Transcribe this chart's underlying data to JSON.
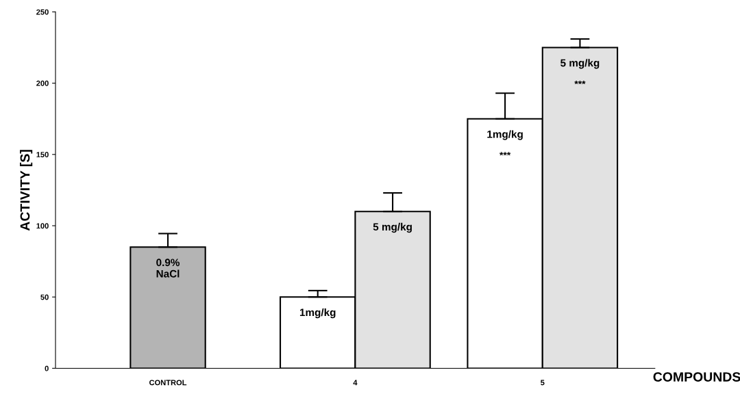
{
  "chart_data": {
    "type": "bar",
    "xlabel": "COMPOUNDS",
    "ylabel": "ACTIVITY [S]",
    "categories": [
      "CONTROL",
      "4",
      "5"
    ],
    "series": [
      {
        "name": "0.9%\nNaCl",
        "color": "#b4b4b4",
        "values": [
          85,
          null,
          null
        ],
        "errors": [
          [
            85,
            94.5
          ],
          null,
          null
        ],
        "value_labels": [
          null,
          null,
          null
        ]
      },
      {
        "name": "1mg/kg",
        "color": "#ffffff",
        "values": [
          null,
          50,
          175
        ],
        "errors": [
          null,
          [
            50,
            54.5
          ],
          [
            175,
            193
          ]
        ],
        "value_labels": [
          null,
          null,
          "***"
        ]
      },
      {
        "name": "5 mg/kg",
        "color": "#e2e2e2",
        "values": [
          null,
          110,
          225
        ],
        "errors": [
          null,
          [
            110,
            123
          ],
          [
            225,
            231
          ]
        ],
        "value_labels": [
          null,
          null,
          "***"
        ]
      }
    ],
    "ylim": [
      0,
      250
    ],
    "yticks": [
      0,
      50,
      100,
      150,
      200,
      250
    ],
    "grid": false,
    "legend": false
  }
}
